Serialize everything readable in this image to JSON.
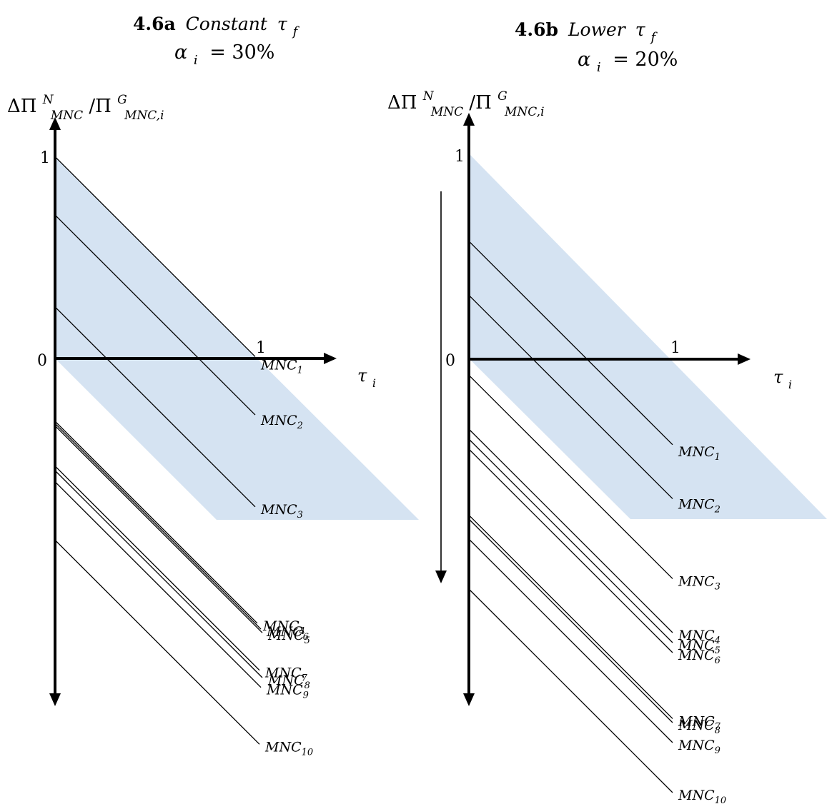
{
  "colors": {
    "band": "#d5e3f2",
    "ink": "#000000"
  },
  "panel_a": {
    "title_bold": "4.6a",
    "title_italic": "Constant",
    "title_tau": "τ",
    "title_sub": "f",
    "alpha_symbol": "α",
    "alpha_sub": "i",
    "alpha_value": "= 30%",
    "ylabel": {
      "d": "ΔΠ",
      "sup1": "N",
      "sub1": "MNC",
      "slash": "/Π",
      "sup2": "G",
      "sub2": "MNC,i"
    },
    "y_tick_1": "1",
    "origin": "0",
    "x_tick_1": "1",
    "xlabel": {
      "t": "τ",
      "sub": "i"
    },
    "lines": [
      {
        "label": "MNC",
        "sub": "1",
        "intercept": 0.9
      },
      {
        "label": "MNC",
        "sub": "2",
        "intercept": 0.64
      },
      {
        "label": "MNC",
        "sub": "3",
        "intercept": 0.23
      },
      {
        "label": "MNC",
        "sub": "4",
        "intercept": -0.28
      },
      {
        "label": "MNC",
        "sub": "5",
        "intercept": -0.3
      },
      {
        "label": "MNC",
        "sub": "6",
        "intercept": -0.29
      },
      {
        "label": "MNC",
        "sub": "7",
        "intercept": -0.48
      },
      {
        "label": "MNC",
        "sub": "8",
        "intercept": -0.5
      },
      {
        "label": "MNC",
        "sub": "9",
        "intercept": -0.55
      },
      {
        "label": "MNC",
        "sub": "10",
        "intercept": -0.81
      }
    ]
  },
  "panel_b": {
    "title_bold": "4.6b",
    "title_italic": "Lower",
    "title_tau": "τ",
    "title_sub": "f",
    "alpha_symbol": "α",
    "alpha_sub": "i",
    "alpha_value": "= 20%",
    "ylabel": {
      "d": "ΔΠ",
      "sup1": "N",
      "sub1": "MNC",
      "slash": "/Π",
      "sup2": "G",
      "sub2": "MNC,i"
    },
    "y_tick_1": "1",
    "origin": "0",
    "x_tick_1": "1",
    "xlabel": {
      "t": "τ",
      "sub": "i"
    },
    "lines": [
      {
        "label": "MNC",
        "sub": "1",
        "intercept": 0.59
      },
      {
        "label": "MNC",
        "sub": "2",
        "intercept": 0.32
      },
      {
        "label": "MNC",
        "sub": "3",
        "intercept": -0.08
      },
      {
        "label": "MNC",
        "sub": "4",
        "intercept": -0.35
      },
      {
        "label": "MNC",
        "sub": "5",
        "intercept": -0.4
      },
      {
        "label": "MNC",
        "sub": "6",
        "intercept": -0.45
      },
      {
        "label": "MNC",
        "sub": "7",
        "intercept": -0.78
      },
      {
        "label": "MNC",
        "sub": "8",
        "intercept": -0.8
      },
      {
        "label": "MNC",
        "sub": "9",
        "intercept": -0.9
      },
      {
        "label": "MNC",
        "sub": "10",
        "intercept": -1.15
      }
    ]
  }
}
